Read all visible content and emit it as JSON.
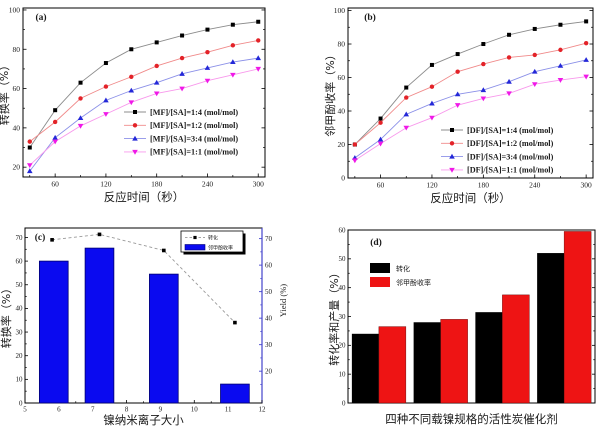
{
  "figure": {
    "background": "#ffffff",
    "panel_tags": [
      "(a)",
      "(b)",
      "(c)",
      "(d)"
    ]
  },
  "chart_data": [
    {
      "type": "line",
      "tag": "(a)",
      "xlabel": "反应时间（秒）",
      "ylabel": "转换率（%）",
      "x": [
        30,
        60,
        90,
        120,
        150,
        180,
        210,
        240,
        270,
        300
      ],
      "xlim": [
        22,
        308
      ],
      "ylim": [
        15,
        101
      ],
      "xticks": [
        60,
        120,
        180,
        240,
        300
      ],
      "yticks": [
        20,
        40,
        60,
        80,
        100
      ],
      "grid": false,
      "legend_position": "lower-right-inside",
      "series": [
        {
          "name": "[MF]/[SA]=1:4 (mol/mol)",
          "marker": "square",
          "color": "#000000",
          "line_color": "#8c8c8c",
          "values": [
            30,
            49,
            63,
            73,
            80,
            83.5,
            87,
            90,
            92.5,
            94
          ]
        },
        {
          "name": "[MF]/[SA]=1:2 (mol/mol)",
          "marker": "circle",
          "color": "#e32228",
          "line_color": "#f08a8a",
          "values": [
            33,
            43,
            55,
            61,
            66,
            71.5,
            75.5,
            78.5,
            82,
            84.5
          ]
        },
        {
          "name": "[MF]/[SA]=3:4 (mol/mol)",
          "marker": "triangle-up",
          "color": "#2428d8",
          "line_color": "#8b90e8",
          "values": [
            18,
            35,
            45,
            54,
            59,
            63,
            67.5,
            70.5,
            73.5,
            75.5
          ]
        },
        {
          "name": "[MF]/[SA]=1:1 (mol/mol)",
          "marker": "triangle-down",
          "color": "#f018e8",
          "line_color": "#f898ec",
          "values": [
            21,
            33,
            41,
            47,
            53,
            57.5,
            60,
            64,
            67,
            70
          ]
        }
      ]
    },
    {
      "type": "line",
      "tag": "(b)",
      "xlabel": "反应时间（秒）",
      "ylabel": "邻甲酚收率（%）",
      "x": [
        30,
        60,
        90,
        120,
        150,
        180,
        210,
        240,
        270,
        300
      ],
      "xlim": [
        22,
        308
      ],
      "ylim": [
        0,
        101.5
      ],
      "xticks": [
        60,
        120,
        180,
        240,
        300
      ],
      "yticks": [
        0,
        20,
        40,
        60,
        80,
        100
      ],
      "grid": false,
      "legend_position": "lower-right-inside",
      "series": [
        {
          "name": "[DF]/[SA]=1:4 (mol/mol)",
          "marker": "square",
          "color": "#000000",
          "line_color": "#8c8c8c",
          "values": [
            20,
            35.5,
            54,
            67.5,
            74,
            80,
            85.5,
            89,
            91.5,
            93.5
          ]
        },
        {
          "name": "[DF]/[SA]=1:2 (mol/mol)",
          "marker": "circle",
          "color": "#e32228",
          "line_color": "#f08a8a",
          "values": [
            20,
            33,
            48,
            54.5,
            63.5,
            68,
            72,
            73.5,
            76.5,
            80.5
          ]
        },
        {
          "name": "[DF]/[SA]=3:4 (mol/mol)",
          "marker": "triangle-up",
          "color": "#2428d8",
          "line_color": "#8b90e8",
          "values": [
            12,
            23,
            38,
            44.5,
            50,
            52.5,
            57.5,
            63.5,
            67,
            70.5
          ]
        },
        {
          "name": "[DF]/[SA]=1:1 (mol/mol)",
          "marker": "triangle-down",
          "color": "#f018e8",
          "line_color": "#f898ec",
          "values": [
            10.5,
            20.5,
            30,
            36,
            43.5,
            47.5,
            50.5,
            56,
            58.5,
            60.5
          ]
        }
      ]
    },
    {
      "type": "bar-line-dual-axis",
      "tag": "(c)",
      "xlabel": "镍纳米离子大小",
      "ylabel_left": "转换率（%）",
      "ylabel_right": "Yield (%)",
      "xlim": [
        5,
        12
      ],
      "xticks": [
        5,
        6,
        7,
        8,
        9,
        10,
        11,
        12
      ],
      "ylim_left": [
        0,
        74
      ],
      "yticks_left": [
        0,
        10,
        20,
        30,
        40,
        50,
        60,
        70
      ],
      "ylim_right": [
        8,
        74
      ],
      "yticks_right": [
        20,
        30,
        40,
        50,
        60,
        70
      ],
      "right_axis_color": "#4444cc",
      "bar_series": {
        "name": "邻甲酚收率",
        "color": "#0a0af0",
        "edge_color": "#000070",
        "x": [
          5.85,
          7.2,
          9.1,
          11.2
        ],
        "bar_width": 0.85,
        "values_left_axis": [
          60,
          65.5,
          54.5,
          8
        ],
        "values_right_axis": [
          61,
          66,
          56.5,
          15
        ]
      },
      "line_series": {
        "name": "转化",
        "marker": "square",
        "color": "#000000",
        "line_color": "#999999",
        "dashed": true,
        "x": [
          5.8,
          7.2,
          9.1,
          11.2
        ],
        "values": [
          69,
          71.3,
          64.5,
          34
        ]
      },
      "legend_border": true
    },
    {
      "type": "bar",
      "tag": "(d)",
      "xlabel": "四种不同载镍规格的活性炭催化剂",
      "ylabel": "转化率和产量（%）",
      "categories": [
        "",
        "",
        "",
        ""
      ],
      "ylim": [
        0,
        60
      ],
      "yticks": [
        0,
        10,
        20,
        30,
        40,
        50,
        60
      ],
      "legend_border": false,
      "series": [
        {
          "name": "转化",
          "color": "#000000",
          "values": [
            24,
            28,
            31.5,
            52
          ]
        },
        {
          "name": "邻甲酚收率",
          "color": "#ee1414",
          "values": [
            26.5,
            29,
            37.5,
            59.5
          ]
        }
      ]
    }
  ]
}
